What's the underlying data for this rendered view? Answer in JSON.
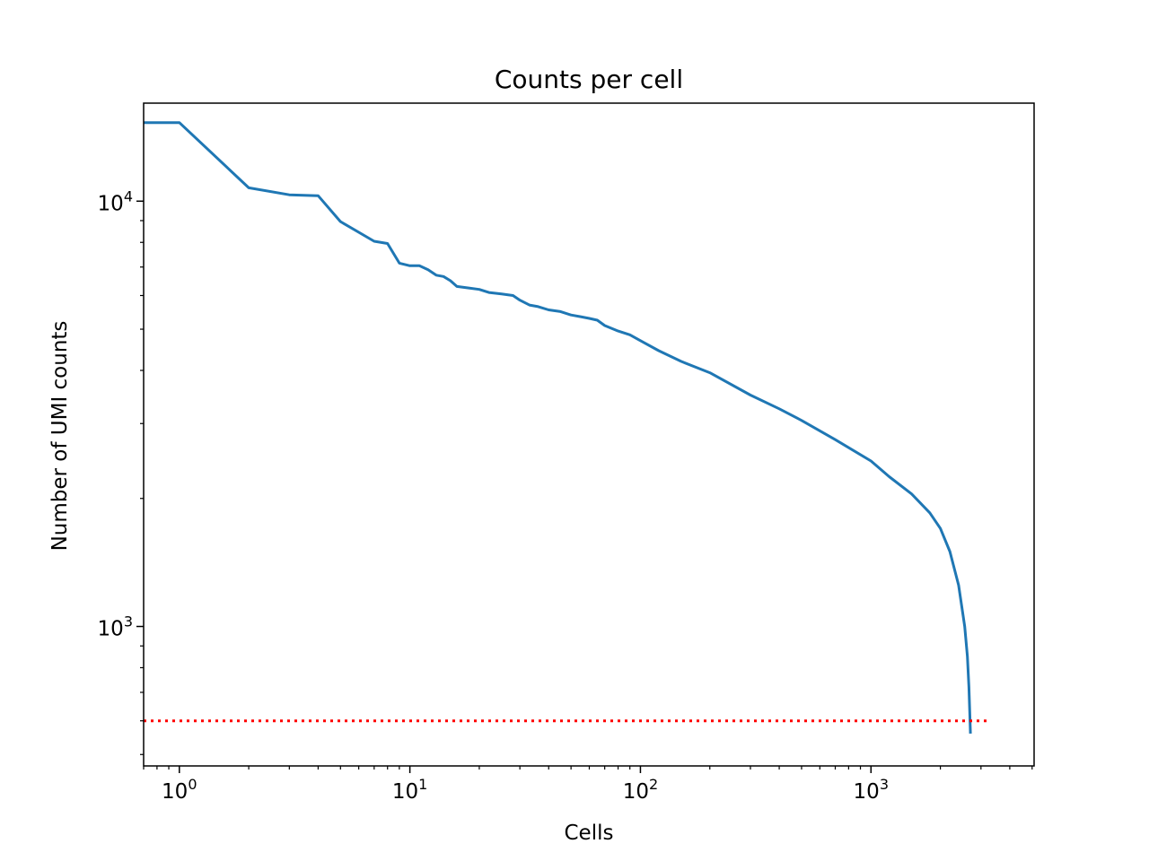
{
  "chart_data": {
    "type": "line",
    "title": "Counts per cell",
    "xlabel": "Cells",
    "ylabel": "Number of UMI counts",
    "xscale": "log",
    "yscale": "log",
    "xlim": [
      0.7,
      5100
    ],
    "ylim": [
      470,
      17000
    ],
    "xticks": [
      {
        "value": 1,
        "base": "10",
        "exp": "0"
      },
      {
        "value": 10,
        "base": "10",
        "exp": "1"
      },
      {
        "value": 100,
        "base": "10",
        "exp": "2"
      },
      {
        "value": 1000,
        "base": "10",
        "exp": "3"
      }
    ],
    "yticks": [
      {
        "value": 1000,
        "base": "10",
        "exp": "3"
      },
      {
        "value": 10000,
        "base": "10",
        "exp": "4"
      }
    ],
    "grid": false,
    "series": [
      {
        "color": "#1f77b4",
        "style": "solid",
        "points": [
          [
            0.7,
            15300
          ],
          [
            1,
            15300
          ],
          [
            2,
            10750
          ],
          [
            3,
            10350
          ],
          [
            4,
            10300
          ],
          [
            5,
            8950
          ],
          [
            7,
            8050
          ],
          [
            8,
            7950
          ],
          [
            9,
            7150
          ],
          [
            10,
            7050
          ],
          [
            11,
            7050
          ],
          [
            12,
            6900
          ],
          [
            13,
            6700
          ],
          [
            14,
            6650
          ],
          [
            15,
            6500
          ],
          [
            16,
            6300
          ],
          [
            18,
            6250
          ],
          [
            20,
            6200
          ],
          [
            22,
            6100
          ],
          [
            25,
            6050
          ],
          [
            28,
            6000
          ],
          [
            30,
            5850
          ],
          [
            33,
            5700
          ],
          [
            36,
            5650
          ],
          [
            40,
            5550
          ],
          [
            45,
            5500
          ],
          [
            50,
            5400
          ],
          [
            55,
            5350
          ],
          [
            60,
            5300
          ],
          [
            65,
            5250
          ],
          [
            70,
            5100
          ],
          [
            80,
            4950
          ],
          [
            90,
            4850
          ],
          [
            100,
            4700
          ],
          [
            120,
            4450
          ],
          [
            150,
            4200
          ],
          [
            200,
            3950
          ],
          [
            300,
            3500
          ],
          [
            400,
            3250
          ],
          [
            500,
            3050
          ],
          [
            700,
            2750
          ],
          [
            1000,
            2450
          ],
          [
            1200,
            2250
          ],
          [
            1500,
            2050
          ],
          [
            1800,
            1850
          ],
          [
            2000,
            1700
          ],
          [
            2200,
            1500
          ],
          [
            2400,
            1250
          ],
          [
            2550,
            1000
          ],
          [
            2620,
            850
          ],
          [
            2660,
            720
          ],
          [
            2700,
            560
          ]
        ]
      },
      {
        "color": "#ff0000",
        "style": "dotted",
        "points": [
          [
            0.7,
            600
          ],
          [
            3300,
            600
          ]
        ]
      }
    ]
  }
}
